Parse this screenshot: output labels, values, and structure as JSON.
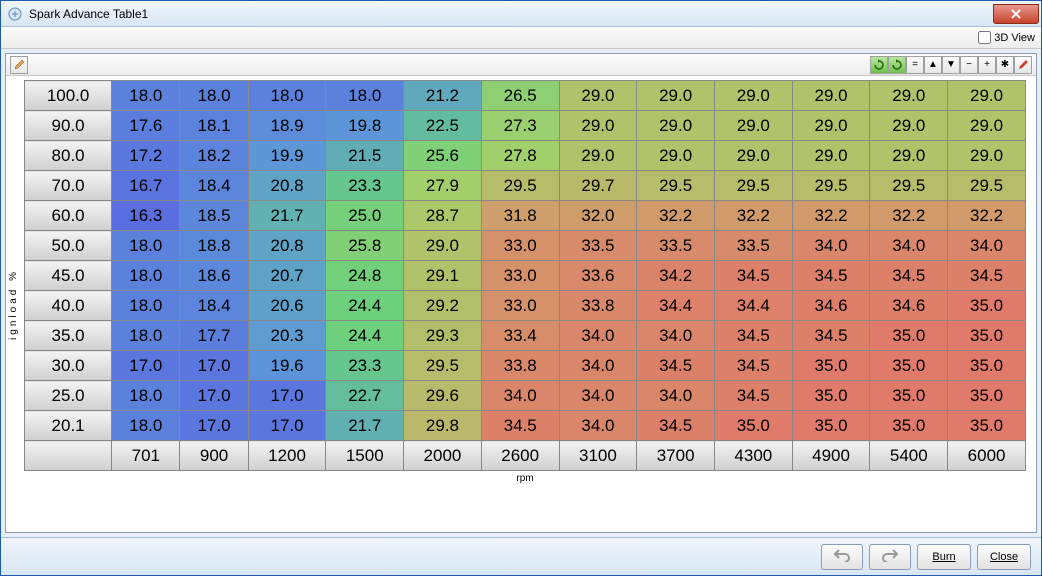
{
  "window": {
    "title": "Spark Advance Table1"
  },
  "toolbar": {
    "view3d_label": "3D View"
  },
  "axes": {
    "ylabel": "ignload %",
    "xlabel": "rpm"
  },
  "footer": {
    "burn": "Burn",
    "close": "Close"
  },
  "yheaders": [
    "100.0",
    "90.0",
    "80.0",
    "70.0",
    "60.0",
    "50.0",
    "45.0",
    "40.0",
    "35.0",
    "30.0",
    "25.0",
    "20.1"
  ],
  "xheaders": [
    "701",
    "900",
    "1200",
    "1500",
    "2000",
    "2600",
    "3100",
    "3700",
    "4300",
    "4900",
    "5400",
    "6000"
  ],
  "cells": [
    [
      "18.0",
      "18.0",
      "18.0",
      "18.0",
      "21.2",
      "26.5",
      "29.0",
      "29.0",
      "29.0",
      "29.0",
      "29.0",
      "29.0"
    ],
    [
      "17.6",
      "18.1",
      "18.9",
      "19.8",
      "22.5",
      "27.3",
      "29.0",
      "29.0",
      "29.0",
      "29.0",
      "29.0",
      "29.0"
    ],
    [
      "17.2",
      "18.2",
      "19.9",
      "21.5",
      "25.6",
      "27.8",
      "29.0",
      "29.0",
      "29.0",
      "29.0",
      "29.0",
      "29.0"
    ],
    [
      "16.7",
      "18.4",
      "20.8",
      "23.3",
      "27.9",
      "29.5",
      "29.7",
      "29.5",
      "29.5",
      "29.5",
      "29.5",
      "29.5"
    ],
    [
      "16.3",
      "18.5",
      "21.7",
      "25.0",
      "28.7",
      "31.8",
      "32.0",
      "32.2",
      "32.2",
      "32.2",
      "32.2",
      "32.2"
    ],
    [
      "18.0",
      "18.8",
      "20.8",
      "25.8",
      "29.0",
      "33.0",
      "33.5",
      "33.5",
      "33.5",
      "34.0",
      "34.0",
      "34.0"
    ],
    [
      "18.0",
      "18.6",
      "20.7",
      "24.8",
      "29.1",
      "33.0",
      "33.6",
      "34.2",
      "34.5",
      "34.5",
      "34.5",
      "34.5"
    ],
    [
      "18.0",
      "18.4",
      "20.6",
      "24.4",
      "29.2",
      "33.0",
      "33.8",
      "34.4",
      "34.4",
      "34.6",
      "34.6",
      "35.0"
    ],
    [
      "18.0",
      "17.7",
      "20.3",
      "24.4",
      "29.3",
      "33.4",
      "34.0",
      "34.0",
      "34.5",
      "34.5",
      "35.0",
      "35.0"
    ],
    [
      "17.0",
      "17.0",
      "19.6",
      "23.3",
      "29.5",
      "33.8",
      "34.0",
      "34.5",
      "34.5",
      "35.0",
      "35.0",
      "35.0"
    ],
    [
      "18.0",
      "17.0",
      "17.0",
      "22.7",
      "29.6",
      "34.0",
      "34.0",
      "34.0",
      "34.5",
      "35.0",
      "35.0",
      "35.0"
    ],
    [
      "18.0",
      "17.0",
      "17.0",
      "21.7",
      "29.8",
      "34.5",
      "34.0",
      "34.5",
      "35.0",
      "35.0",
      "35.0",
      "35.0"
    ]
  ],
  "palette": {
    "min_value": 16.3,
    "max_value": 35.0,
    "stops": [
      {
        "v": 16.3,
        "c": "#5a6ee0"
      },
      {
        "v": 20.0,
        "c": "#5d98d8"
      },
      {
        "v": 24.0,
        "c": "#67d07e"
      },
      {
        "v": 28.0,
        "c": "#a3cf6a"
      },
      {
        "v": 31.0,
        "c": "#c9a86a"
      },
      {
        "v": 35.0,
        "c": "#e07a6a"
      }
    ]
  },
  "toolbuttons": [
    "=",
    "▲",
    "▼",
    "−",
    "+",
    "✱"
  ]
}
